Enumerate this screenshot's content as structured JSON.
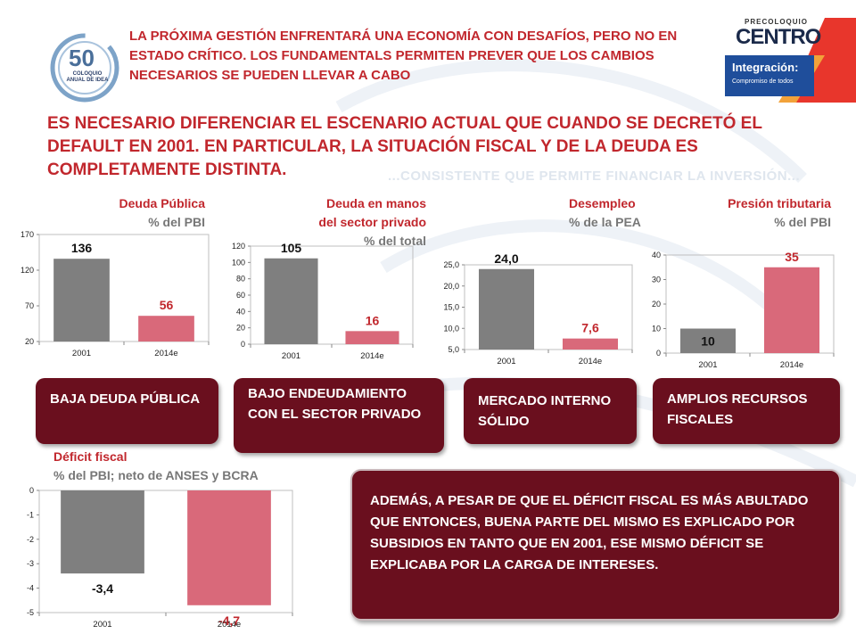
{
  "headline": "LA PRÓXIMA GESTIÓN ENFRENTARÁ UNA ECONOMÍA CON DESAFÍOS, PERO NO EN ESTADO CRÍTICO. LOS FUNDAMENTALS PERMITEN PREVER QUE LOS CAMBIOS NECESARIOS SE PUEDEN  LLEVAR A CABO",
  "subheadline": "ES NECESARIO DIFERENCIAR EL ESCENARIO ACTUAL QUE CUANDO SE DECRETÓ EL DEFAULT EN 2001. EN PARTICULAR, LA SITUACIÓN FISCAL Y DE LA DEUDA ES COMPLETAMENTE DISTINTA.",
  "ghost_text": "...CONSISTENTE QUE PERMITE FINANCIAR LA INVERSIÓN...",
  "logo": {
    "number": "50",
    "text": "COLOQUIO ANUAL DE IDEA"
  },
  "brand": {
    "pre": "PRECOLOQUIO",
    "name": "CENTRO",
    "band_title": "Integración:",
    "band_sub": "Compromiso de todos"
  },
  "colors": {
    "gray_bar": "#7f7f7f",
    "pink_bar": "#d9697a",
    "headline_red": "#c1272d",
    "box_maroon": "#6a0f1e"
  },
  "labels": {
    "deuda_publica": {
      "title": "Deuda Pública",
      "unit": "% del PBI"
    },
    "deuda_privado": {
      "title1": "Deuda en manos",
      "title2": "del sector privado",
      "unit": "% del total"
    },
    "desempleo": {
      "title": "Desempleo",
      "unit": "% de la PEA"
    },
    "presion": {
      "title": "Presión tributaria",
      "unit": "% del PBI"
    },
    "deficit": {
      "title": "Déficit fiscal",
      "unit": "% del PBI; neto de ANSES y BCRA"
    }
  },
  "boxes": {
    "b1": "BAJA DEUDA PÚBLICA",
    "b2": "BAJO ENDEUDAMIENTO CON EL SECTOR PRIVADO",
    "b3": "MERCADO INTERNO SÓLIDO",
    "b4": "AMPLIOS RECURSOS FISCALES",
    "big": "ADEMÁS, A PESAR DE QUE EL DÉFICIT FISCAL ES MÁS ABULTADO QUE ENTONCES, BUENA PARTE DEL MISMO ES EXPLICADO POR SUBSIDIOS EN TANTO QUE EN 2001, ESE MISMO DÉFICIT SE EXPLICABA POR LA CARGA DE INTERESES."
  },
  "chart_data": [
    {
      "id": "deuda_publica",
      "type": "bar",
      "categories": [
        "2001",
        "2014e"
      ],
      "values": [
        136,
        56
      ],
      "data_labels": [
        "136",
        "56"
      ],
      "ylim": [
        20,
        170
      ],
      "yticks": [
        "20",
        "70",
        "120",
        "170"
      ]
    },
    {
      "id": "deuda_privado",
      "type": "bar",
      "categories": [
        "2001",
        "2014e"
      ],
      "values": [
        105,
        16
      ],
      "data_labels": [
        "105",
        "16"
      ],
      "ylim": [
        0,
        120
      ],
      "yticks": [
        "0",
        "20",
        "40",
        "60",
        "80",
        "100",
        "120"
      ]
    },
    {
      "id": "desempleo",
      "type": "bar",
      "categories": [
        "2001",
        "2014e"
      ],
      "values": [
        24.0,
        7.6
      ],
      "data_labels": [
        "24,0",
        "7,6"
      ],
      "ylim": [
        5,
        25
      ],
      "yticks": [
        "5,0",
        "10,0",
        "15,0",
        "20,0",
        "25,0"
      ]
    },
    {
      "id": "presion",
      "type": "bar",
      "categories": [
        "2001",
        "2014e"
      ],
      "values": [
        10,
        35
      ],
      "data_labels": [
        "10",
        "35"
      ],
      "ylim": [
        0,
        40
      ],
      "yticks": [
        "0",
        "10",
        "20",
        "30",
        "40"
      ]
    },
    {
      "id": "deficit",
      "type": "bar",
      "categories": [
        "2001",
        "2014e"
      ],
      "values": [
        -3.4,
        -4.7
      ],
      "data_labels": [
        "-3,4",
        "-4,7"
      ],
      "ylim": [
        -5,
        0
      ],
      "yticks": [
        "-5",
        "-4",
        "-3",
        "-2",
        "-1",
        "0"
      ]
    }
  ]
}
